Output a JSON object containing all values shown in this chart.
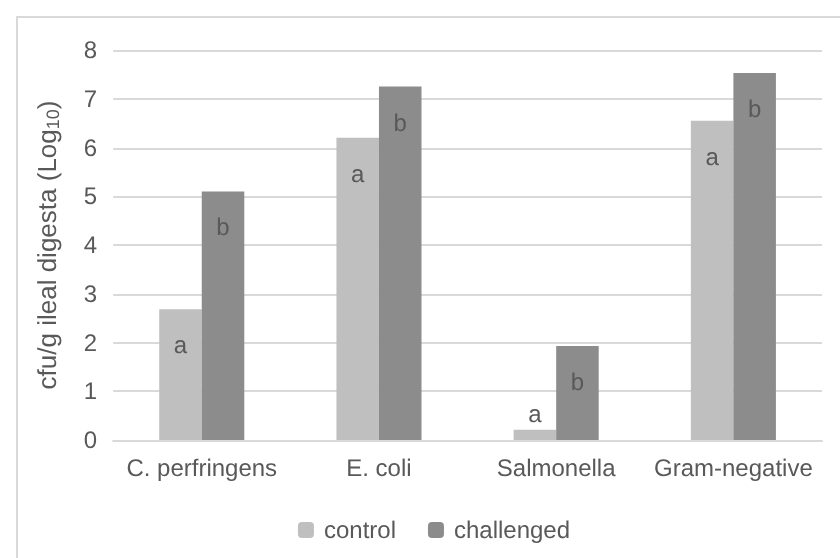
{
  "chart_data": {
    "type": "bar",
    "ylabel": "cfu/g ileal digesta (Log$_{10}$)",
    "categories": [
      "C. perfringens",
      "E. coli",
      "Salmonella",
      "Gram-negative"
    ],
    "series": [
      {
        "name": "control",
        "color": "#bfbfbf",
        "values": [
          2.68,
          6.2,
          0.21,
          6.55
        ],
        "value_labels": [
          "a",
          "a",
          "a",
          "a"
        ]
      },
      {
        "name": "challenged",
        "color": "#8c8c8c",
        "values": [
          5.1,
          7.25,
          1.93,
          7.53
        ],
        "value_labels": [
          "b",
          "b",
          "b",
          "b"
        ]
      }
    ],
    "ylim": [
      0,
      8
    ],
    "yticks": [
      0,
      1,
      2,
      3,
      4,
      5,
      6,
      7,
      8
    ],
    "grid": "y",
    "legend": "bottom"
  }
}
